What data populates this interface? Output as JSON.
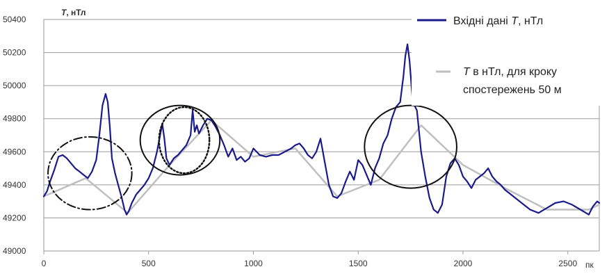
{
  "chart_data": {
    "type": "line",
    "title": "",
    "ylabel": {
      "symbol": "T",
      "unit": ", нТл"
    },
    "xlabel": "пк",
    "xlim": [
      0,
      2650
    ],
    "ylim": [
      49000,
      50400
    ],
    "x_ticks": [
      "0",
      "500",
      "1000",
      "1500",
      "2000",
      "2500"
    ],
    "y_ticks": [
      "49000",
      "49200",
      "49400",
      "49600",
      "49800",
      "50000",
      "50200",
      "50400"
    ],
    "legend_position": "top-right",
    "legend": [
      {
        "pre": "Вхідні дані ",
        "sym": "T",
        "post": ", нТл"
      },
      {
        "pre": "",
        "sym": "T",
        "post": " в нТл, для кроку",
        "line2": "спостережень 50 м"
      }
    ],
    "colors": {
      "input": "#1a1a8c",
      "step50": "#bfbfbf",
      "circles": "#111111"
    },
    "series": [
      {
        "id": "input",
        "x": [
          0,
          15,
          30,
          50,
          70,
          90,
          110,
          130,
          150,
          170,
          190,
          210,
          230,
          250,
          265,
          280,
          295,
          305,
          315,
          325,
          340,
          355,
          370,
          385,
          395,
          405,
          420,
          440,
          460,
          480,
          500,
          520,
          540,
          555,
          565,
          575,
          585,
          600,
          620,
          640,
          660,
          680,
          700,
          710,
          720,
          730,
          740,
          760,
          780,
          800,
          820,
          840,
          860,
          880,
          900,
          920,
          940,
          960,
          980,
          1000,
          1030,
          1060,
          1090,
          1120,
          1150,
          1180,
          1200,
          1220,
          1240,
          1260,
          1280,
          1300,
          1320,
          1340,
          1360,
          1380,
          1400,
          1420,
          1440,
          1460,
          1480,
          1500,
          1520,
          1540,
          1560,
          1580,
          1600,
          1620,
          1640,
          1660,
          1680,
          1700,
          1715,
          1725,
          1735,
          1745,
          1760,
          1780,
          1800,
          1820,
          1840,
          1860,
          1880,
          1900,
          1920,
          1940,
          1960,
          1980,
          2000,
          2020,
          2040,
          2060,
          2080,
          2100,
          2120,
          2140,
          2160,
          2180,
          2200,
          2240,
          2280,
          2320,
          2360,
          2400,
          2440,
          2480,
          2520,
          2560,
          2600,
          2620,
          2640,
          2650
        ],
        "y": [
          49330,
          49360,
          49420,
          49490,
          49570,
          49580,
          49560,
          49530,
          49500,
          49480,
          49460,
          49440,
          49480,
          49550,
          49700,
          49880,
          49950,
          49900,
          49750,
          49560,
          49470,
          49400,
          49330,
          49250,
          49220,
          49240,
          49290,
          49340,
          49370,
          49400,
          49440,
          49500,
          49600,
          49700,
          49770,
          49680,
          49560,
          49520,
          49560,
          49580,
          49610,
          49640,
          49700,
          49850,
          49720,
          49760,
          49710,
          49760,
          49800,
          49790,
          49750,
          49700,
          49640,
          49570,
          49620,
          49550,
          49570,
          49540,
          49560,
          49620,
          49580,
          49570,
          49580,
          49580,
          49600,
          49620,
          49640,
          49650,
          49620,
          49580,
          49560,
          49600,
          49680,
          49540,
          49400,
          49330,
          49320,
          49350,
          49420,
          49480,
          49430,
          49550,
          49520,
          49460,
          49400,
          49500,
          49560,
          49650,
          49700,
          49800,
          49870,
          49900,
          50050,
          50180,
          50250,
          50150,
          49900,
          49850,
          49600,
          49450,
          49320,
          49250,
          49230,
          49280,
          49450,
          49530,
          49560,
          49520,
          49450,
          49420,
          49380,
          49430,
          49450,
          49470,
          49500,
          49450,
          49420,
          49400,
          49370,
          49330,
          49290,
          49250,
          49230,
          49260,
          49290,
          49300,
          49280,
          49250,
          49220,
          49270,
          49300,
          49290
        ]
      },
      {
        "id": "step50",
        "x": [
          0,
          200,
          400,
          600,
          800,
          1000,
          1200,
          1400,
          1600,
          1800,
          2000,
          2200,
          2400,
          2600,
          2650
        ],
        "y": [
          49330,
          49440,
          49230,
          49520,
          49790,
          49570,
          49620,
          49330,
          49430,
          49760,
          49520,
          49380,
          49250,
          49250,
          49280
        ]
      }
    ],
    "annotations": [
      {
        "style": "dash-dot",
        "cx": 220,
        "cy": 49470,
        "rx": 200,
        "ry": 220
      },
      {
        "style": "solid",
        "cx": 650,
        "cy": 49670,
        "rx": 190,
        "ry": 210
      },
      {
        "style": "dotted",
        "cx": 670,
        "cy": 49670,
        "rx": 120,
        "ry": 200
      },
      {
        "style": "solid",
        "cx": 1750,
        "cy": 49630,
        "rx": 220,
        "ry": 250
      }
    ]
  }
}
